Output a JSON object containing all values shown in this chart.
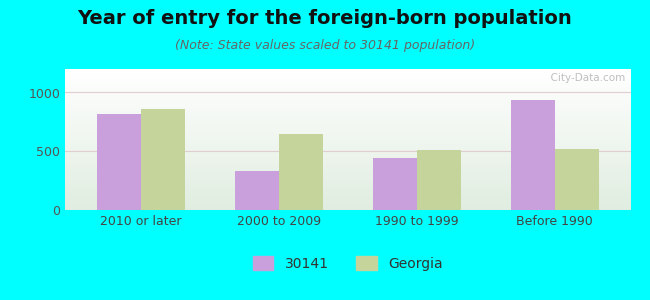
{
  "title": "Year of entry for the foreign-born population",
  "subtitle": "(Note: State values scaled to 30141 population)",
  "categories": [
    "2010 or later",
    "2000 to 2009",
    "1990 to 1999",
    "Before 1990"
  ],
  "values_30141": [
    820,
    330,
    440,
    940
  ],
  "values_georgia": [
    860,
    650,
    510,
    520
  ],
  "color_30141": "#c9a0dc",
  "color_georgia": "#c5d49a",
  "background_outer": "#00ffff",
  "ylim": [
    0,
    1200
  ],
  "yticks": [
    0,
    500,
    1000
  ],
  "bar_width": 0.32,
  "legend_label_30141": "30141",
  "legend_label_georgia": "Georgia",
  "title_fontsize": 14,
  "subtitle_fontsize": 9
}
